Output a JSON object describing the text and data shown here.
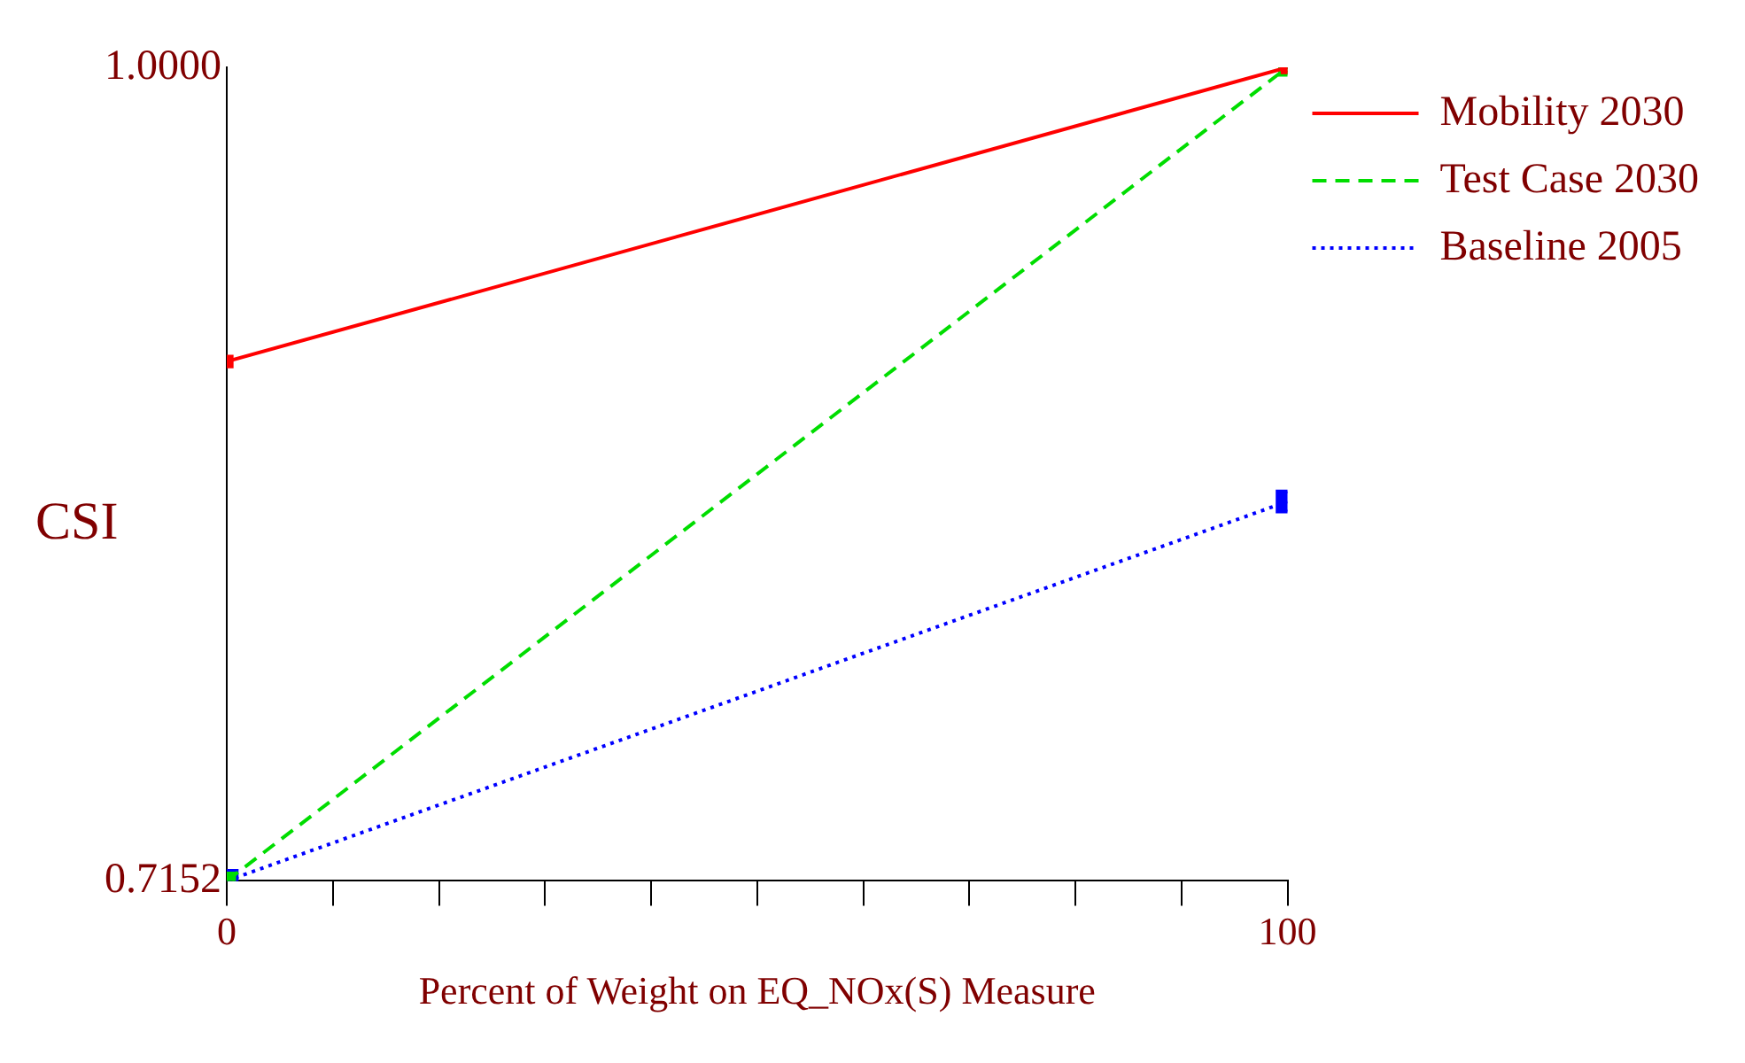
{
  "chart_data": {
    "type": "line",
    "xlabel": "Percent of Weight on EQ_NOx(S) Measure",
    "ylabel": "CSI",
    "xlim": [
      0,
      100
    ],
    "xticks": [
      {
        "value": 0,
        "label": "0"
      },
      {
        "value": 10,
        "label": null
      },
      {
        "value": 20,
        "label": null
      },
      {
        "value": 30,
        "label": null
      },
      {
        "value": 40,
        "label": null
      },
      {
        "value": 50,
        "label": null
      },
      {
        "value": 60,
        "label": null
      },
      {
        "value": 70,
        "label": null
      },
      {
        "value": 80,
        "label": null
      },
      {
        "value": 90,
        "label": null
      },
      {
        "value": 100,
        "label": "100"
      }
    ],
    "ylim": [
      0.7152,
      1.0
    ],
    "yticks": [
      {
        "value": 0.7152,
        "label": "0.7152"
      },
      {
        "value": 1.0,
        "label": "1.0000"
      }
    ],
    "x": [
      0,
      100
    ],
    "series": [
      {
        "name": "Mobility 2030",
        "color": "#ff0000",
        "line_style": "solid",
        "values": [
          0.897,
          1.0
        ]
      },
      {
        "name": "Test Case 2030",
        "color": "#00dd00",
        "line_style": "dashed",
        "values": [
          0.7152,
          1.0
        ]
      },
      {
        "name": "Baseline 2005",
        "color": "#0000ff",
        "line_style": "dotted",
        "values": [
          0.7152,
          0.848
        ]
      }
    ],
    "marker": "square",
    "grid": false,
    "legend": "top right"
  }
}
